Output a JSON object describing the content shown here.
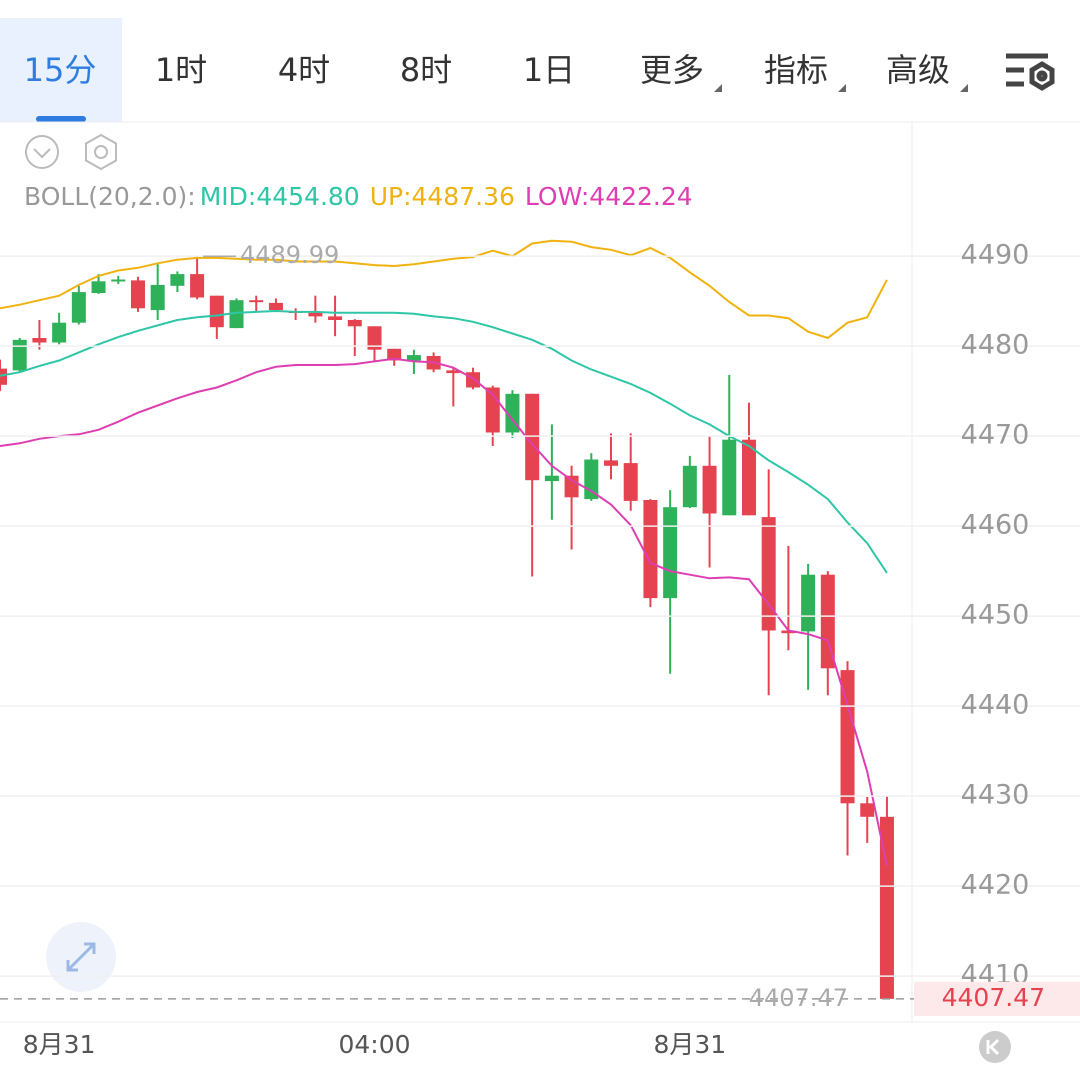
{
  "tabs": [
    "15分",
    "1时",
    "4时",
    "8时",
    "1日",
    "更多",
    "指标",
    "高级"
  ],
  "indicator": {
    "name": "BOLL(20,2.0):",
    "mid": "MID:4454.80",
    "up": "UP:4487.36",
    "low": "LOW:4422.24"
  },
  "chart_data": {
    "type": "candlestick",
    "categories": [
      null,
      null,
      null,
      "8月31",
      null,
      null,
      null,
      null,
      null,
      null,
      null,
      null,
      null,
      null,
      null,
      null,
      null,
      null,
      null,
      "04:00",
      null,
      null,
      null,
      null,
      null,
      null,
      null,
      null,
      null,
      null,
      null,
      null,
      null,
      null,
      null,
      "8月31",
      null,
      null,
      null,
      null,
      null,
      null,
      null,
      null,
      null,
      null
    ],
    "open": [
      4477.5,
      4477.3,
      4480.9,
      4480.4,
      4482.6,
      4485.9,
      4487.2,
      4487.3,
      4484.0,
      4486.7,
      4488.0,
      4485.6,
      4482.0,
      4485.1,
      4484.8,
      4483.9,
      4483.7,
      4483.3,
      4482.9,
      4482.2,
      4479.7,
      4478.4,
      4478.9,
      4477.3,
      4477.1,
      4475.4,
      4470.4,
      4474.7,
      4465.0,
      4465.6,
      4463.0,
      4467.3,
      4467.0,
      4462.9,
      4452.0,
      4462.1,
      4466.7,
      4461.2,
      4469.6,
      4461.0,
      4448.4,
      4448.3,
      4454.6,
      4444.0,
      4429.2,
      4427.7
    ],
    "high": [
      4478.5,
      4480.9,
      4482.9,
      4483.7,
      4486.7,
      4488.0,
      4487.8,
      4487.7,
      4489.1,
      4488.3,
      4489.99,
      4485.6,
      4485.3,
      4485.6,
      4485.3,
      4484.2,
      4485.6,
      4485.6,
      4483.0,
      4482.2,
      4479.7,
      4479.6,
      4479.3,
      4477.6,
      4477.6,
      4475.6,
      4475.1,
      4474.7,
      4471.3,
      4466.7,
      4468.1,
      4470.3,
      4470.3,
      4463.0,
      4464.0,
      4467.8,
      4470.0,
      4476.8,
      4473.7,
      4466.3,
      4457.8,
      4455.8,
      4455.0,
      4445.0,
      4429.9,
      4430.0
    ],
    "low": [
      4475.0,
      4477.1,
      4479.6,
      4480.2,
      4482.4,
      4485.8,
      4486.9,
      4483.8,
      4482.9,
      4486.0,
      4485.2,
      4480.8,
      4482.0,
      4483.8,
      4483.8,
      4482.9,
      4482.6,
      4481.1,
      4478.9,
      4478.4,
      4477.8,
      4476.9,
      4477.1,
      4473.3,
      4475.2,
      4468.9,
      4469.8,
      4454.4,
      4460.7,
      4457.4,
      4462.8,
      4465.2,
      4461.7,
      4451.0,
      4443.6,
      4462.0,
      4455.4,
      4461.2,
      4461.2,
      4441.2,
      4446.2,
      4441.8,
      4441.2,
      4423.4,
      4424.8,
      4407.47
    ],
    "close": [
      4475.7,
      4480.7,
      4480.4,
      4482.6,
      4486.0,
      4487.2,
      4487.4,
      4484.2,
      4486.8,
      4488.0,
      4485.4,
      4482.1,
      4485.1,
      4484.9,
      4484.0,
      4483.7,
      4483.3,
      4482.9,
      4482.2,
      4479.6,
      4478.4,
      4479.0,
      4477.4,
      4477.0,
      4475.4,
      4470.4,
      4474.7,
      4465.1,
      4465.6,
      4463.2,
      4467.4,
      4466.7,
      4462.8,
      4452.0,
      4462.1,
      4466.7,
      4461.4,
      4469.6,
      4461.2,
      4448.4,
      4448.1,
      4454.6,
      4444.2,
      4429.2,
      4427.7,
      4407.47
    ],
    "up_color": "#2fb15a",
    "down_color": "#e5434f",
    "bands": [
      {
        "color": "#f0b20e",
        "values": [
          4484.2,
          4484.6,
          4485.1,
          4485.6,
          4486.8,
          4487.8,
          4488.4,
          4488.7,
          4489.2,
          4489.6,
          4489.8,
          4489.8,
          4489.7,
          4489.6,
          4489.6,
          4489.4,
          4489.4,
          4489.4,
          4489.2,
          4489.0,
          4488.9,
          4489.1,
          4489.4,
          4489.7,
          4489.9,
          4490.6,
          4490.0,
          4491.4,
          4491.7,
          4491.6,
          4491.0,
          4490.7,
          4490.1,
          4490.9,
          4489.8,
          4488.2,
          4486.7,
          4484.9,
          4483.4,
          4483.4,
          4483.1,
          4481.6,
          4480.9,
          4482.6,
          4483.2,
          4487.36
        ]
      },
      {
        "color": "#2ec6a6",
        "values": [
          4476.7,
          4477.1,
          4477.8,
          4478.4,
          4479.3,
          4480.2,
          4481.0,
          4481.7,
          4482.3,
          4482.9,
          4483.2,
          4483.4,
          4483.7,
          4483.8,
          4483.9,
          4483.8,
          4483.8,
          4483.7,
          4483.7,
          4483.7,
          4483.7,
          4483.6,
          4483.3,
          4483.1,
          4482.7,
          4482.1,
          4481.4,
          4480.7,
          4479.7,
          4478.4,
          4477.4,
          4476.6,
          4475.8,
          4474.8,
          4473.6,
          4472.3,
          4471.3,
          4470.0,
          4468.9,
          4467.3,
          4466.0,
          4464.6,
          4463.0,
          4460.4,
          4458.1,
          4454.8
        ]
      },
      {
        "color": "#dd3fb3",
        "values": [
          4468.9,
          4469.2,
          4469.7,
          4470.0,
          4470.2,
          4470.7,
          4471.6,
          4472.6,
          4473.4,
          4474.2,
          4474.9,
          4475.4,
          4476.2,
          4477.1,
          4477.7,
          4477.9,
          4477.9,
          4477.9,
          4478.0,
          4478.3,
          4478.6,
          4478.3,
          4478.2,
          4477.6,
          4476.4,
          4474.6,
          4471.8,
          4469.1,
          4466.7,
          4465.1,
          4463.9,
          4462.4,
          4460.1,
          4455.9,
          4455.0,
          4454.6,
          4454.2,
          4454.3,
          4454.1,
          4451.3,
          4448.4,
          4448.0,
          4447.3,
          4440.1,
          4432.7,
          4422.24
        ]
      }
    ],
    "ylim": [
      4404.9,
      4492.9
    ],
    "yticks": [
      4410,
      4420,
      4430,
      4440,
      4450,
      4460,
      4470,
      4480,
      4490
    ],
    "grid": true,
    "max_marker": 4489.99,
    "last_price": 4407.47
  }
}
